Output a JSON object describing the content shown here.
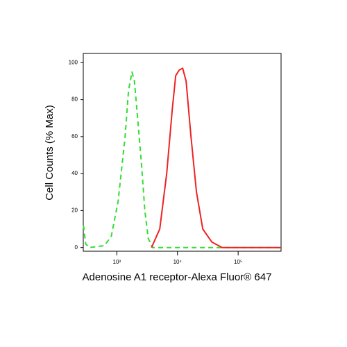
{
  "chart_data": {
    "type": "line",
    "xlabel": "Adenosine A1 receptor-Alexa Fluor® 647",
    "ylabel": "Cell Counts (% Max)",
    "xscale": "log",
    "xlim": [
      280,
      510000
    ],
    "ylim": [
      -2,
      105
    ],
    "xticks": [
      {
        "value": 1000,
        "label": "10³"
      },
      {
        "value": 10000,
        "label": "10⁴"
      },
      {
        "value": 100000,
        "label": "10⁵"
      }
    ],
    "yticks": [
      0,
      20,
      40,
      60,
      80,
      100
    ],
    "series": [
      {
        "color": "#33dd33",
        "style": "dashed",
        "x": [
          282,
          306,
          350,
          620,
          810,
          1050,
          1370,
          1560,
          1780,
          1950,
          2200,
          2550,
          2900,
          3300,
          3900,
          10000,
          100000,
          500000
        ],
        "values": [
          12,
          2,
          0,
          1,
          6,
          25,
          60,
          85,
          95,
          90,
          70,
          45,
          20,
          5,
          0,
          0,
          0,
          0
        ]
      },
      {
        "color": "#ee2222",
        "style": "solid",
        "x": [
          3730,
          5110,
          6640,
          8220,
          9360,
          10670,
          12160,
          13900,
          16680,
          20560,
          26120,
          36770,
          54600,
          500000
        ],
        "values": [
          0,
          10,
          40,
          75,
          93,
          96,
          97,
          90,
          60,
          30,
          10,
          3,
          0,
          0
        ]
      }
    ]
  }
}
